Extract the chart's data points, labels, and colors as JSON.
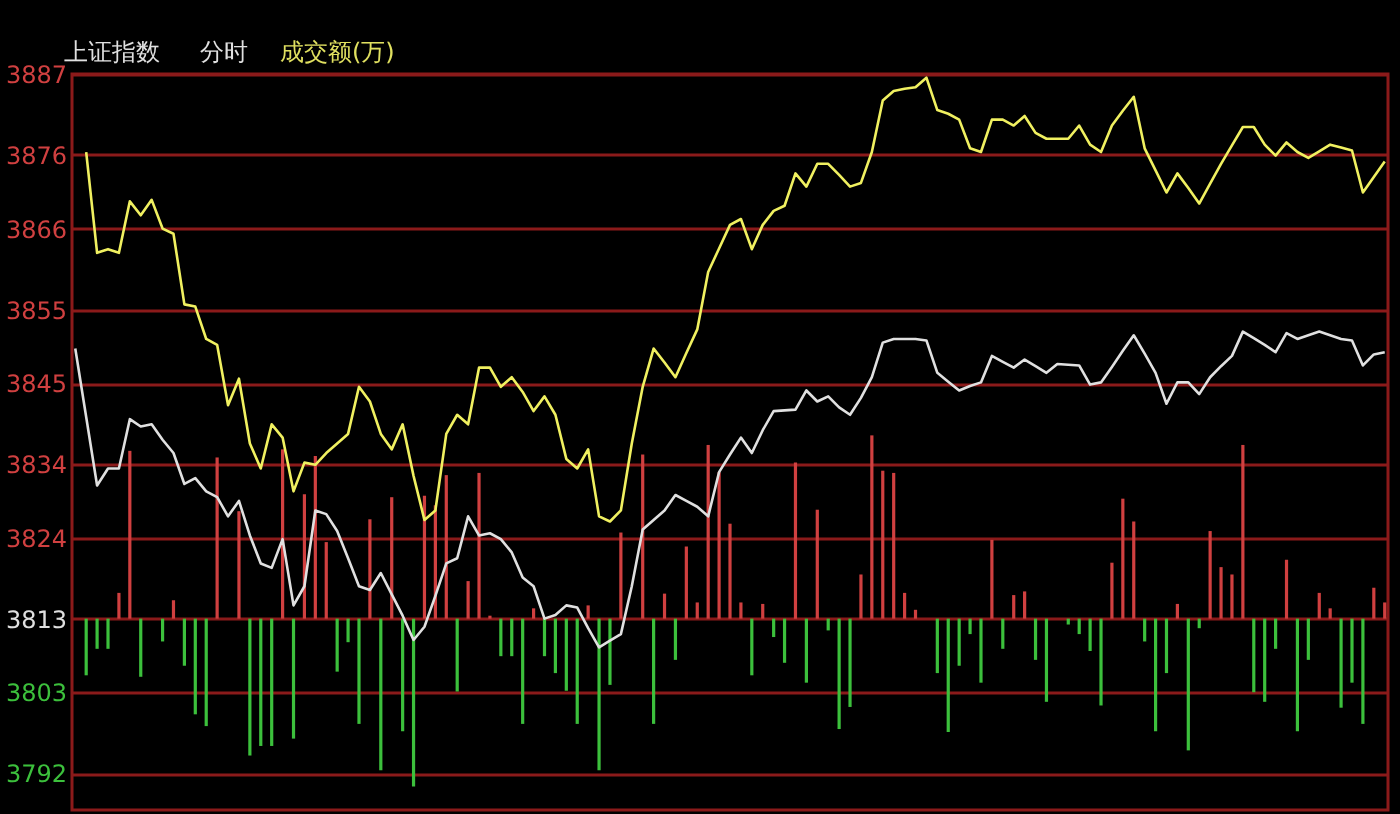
{
  "chart_data": {
    "type": "line",
    "title": "上证指数",
    "annotations": [
      "分时",
      "成交额(万)"
    ],
    "categories": [
      null,
      null,
      null,
      null,
      null,
      null,
      null,
      null,
      null,
      null,
      null,
      null,
      null,
      null,
      null,
      null,
      null,
      null,
      null,
      null,
      null,
      null,
      null,
      null,
      null,
      null,
      null,
      null,
      null,
      null,
      null,
      null,
      null,
      null,
      null,
      null,
      null,
      null,
      null,
      null,
      null,
      null,
      null,
      null,
      null,
      null,
      null,
      null,
      null,
      null,
      null,
      null,
      null,
      null,
      null,
      null,
      null,
      null,
      null,
      null,
      null,
      null,
      null,
      null,
      null,
      null,
      null,
      null,
      null,
      null,
      null,
      null,
      null,
      null,
      null,
      null,
      null,
      null,
      null,
      null,
      null,
      null,
      null,
      null,
      null,
      null,
      null,
      null,
      null,
      null,
      null,
      null,
      null,
      null,
      null,
      null,
      null,
      null,
      null,
      null,
      null,
      null,
      null,
      null,
      null,
      null,
      null,
      null,
      null,
      null,
      null,
      null,
      null,
      null,
      null,
      null,
      null,
      null,
      null,
      null,
      null
    ],
    "ylim": [
      3787,
      3887
    ],
    "yticks": [
      3792,
      3803,
      3813,
      3824,
      3834,
      3845,
      3855,
      3866,
      3876,
      3887
    ],
    "tick_labels": "y",
    "grid": "y",
    "marker": "none",
    "line_style": "solid",
    "series": [
      {
        "type": "bar",
        "base": [
          null,
          3813,
          3813,
          3813,
          3813,
          3813,
          3813,
          null,
          3813,
          3813,
          3813,
          3813,
          3813,
          3813,
          null,
          3813,
          3813,
          3813,
          3813,
          3813,
          3813,
          3813,
          3813,
          3813,
          3813,
          3813,
          3813,
          3813,
          3813,
          3813,
          3813,
          3813,
          3813,
          3813,
          3813,
          3813,
          3813,
          3813,
          3813,
          3813,
          3813,
          3813,
          3813,
          3813,
          3813,
          3813,
          3813,
          3813,
          3813,
          3813,
          3813,
          null,
          3813,
          3813,
          3813,
          3813,
          3813,
          3813,
          3813,
          3813,
          3813,
          3813,
          3813,
          3813,
          3813,
          3813,
          3813,
          3813,
          3813,
          3813,
          3813,
          3813,
          3813,
          3813,
          3813,
          3813,
          3813,
          3813,
          null,
          3813,
          3813,
          3813,
          3813,
          3813,
          3813,
          3813,
          3813,
          3813,
          3813,
          3813,
          null,
          3813,
          3813,
          3813,
          3813,
          3813,
          3813,
          3813,
          3813,
          3813,
          3813,
          3813,
          3813,
          3813,
          3813,
          3813,
          3813,
          3813,
          3813,
          3813,
          3813,
          3813,
          3813,
          3813,
          3813,
          3813,
          3813,
          3813,
          3813,
          3813,
          3813
        ],
        "values": [
          null,
          -7.7,
          -4.1,
          -4.1,
          3.5,
          22.8,
          -7.9,
          null,
          -3.1,
          2.5,
          -6.4,
          -13.0,
          -14.6,
          21.9,
          null,
          14.6,
          -18.6,
          -17.3,
          -17.3,
          23.0,
          -16.3,
          16.9,
          22.1,
          10.4,
          -7.2,
          -3.2,
          -14.3,
          13.5,
          -20.6,
          16.5,
          -15.3,
          -22.8,
          16.7,
          15.4,
          19.5,
          -9.9,
          5.1,
          19.8,
          0.4,
          -5.1,
          -5.1,
          -14.3,
          1.4,
          -5.1,
          -7.4,
          -9.8,
          -14.3,
          1.8,
          -20.6,
          -9.0,
          11.7,
          null,
          22.3,
          -14.3,
          3.4,
          -5.6,
          9.8,
          2.2,
          23.6,
          19.9,
          12.9,
          2.2,
          -7.7,
          2.0,
          -2.5,
          -6.0,
          21.2,
          -8.7,
          14.8,
          -1.6,
          -15.0,
          -12.0,
          6.0,
          24.9,
          20.1,
          19.8,
          3.5,
          1.2,
          null,
          -7.4,
          -15.4,
          -6.4,
          -2.1,
          -8.7,
          10.7,
          -4.1,
          3.2,
          3.7,
          -5.6,
          -11.3,
          null,
          -0.8,
          -2.1,
          -4.4,
          -11.8,
          7.6,
          16.3,
          13.2,
          -3.1,
          -15.3,
          -7.4,
          2.0,
          -17.9,
          -1.3,
          11.9,
          7.0,
          6.0,
          23.6,
          -10.0,
          -11.3,
          -4.1,
          8.0,
          -15.3,
          -5.6,
          3.5,
          1.4,
          -12.1,
          -8.7,
          -14.3,
          4.2,
          2.2
        ],
        "colors": [
          "#d04040",
          "#3cc03c",
          "#3cc03c",
          "#3cc03c",
          "#d04040",
          "#d04040",
          "#3cc03c",
          "#d04040",
          "#3cc03c",
          "#d04040",
          "#3cc03c",
          "#3cc03c",
          "#3cc03c",
          "#d04040",
          "#d04040",
          "#d04040",
          "#3cc03c",
          "#3cc03c",
          "#3cc03c",
          "#d04040",
          "#3cc03c",
          "#d04040",
          "#d04040",
          "#d04040",
          "#3cc03c",
          "#3cc03c",
          "#3cc03c",
          "#d04040",
          "#3cc03c",
          "#d04040",
          "#3cc03c",
          "#3cc03c",
          "#d04040",
          "#d04040",
          "#d04040",
          "#3cc03c",
          "#d04040",
          "#d04040",
          "#d04040",
          "#3cc03c",
          "#3cc03c",
          "#3cc03c",
          "#d04040",
          "#3cc03c",
          "#3cc03c",
          "#3cc03c",
          "#3cc03c",
          "#d04040",
          "#3cc03c",
          "#3cc03c",
          "#d04040",
          "#d04040",
          "#d04040",
          "#3cc03c",
          "#d04040",
          "#3cc03c",
          "#d04040",
          "#d04040",
          "#d04040",
          "#d04040",
          "#d04040",
          "#d04040",
          "#3cc03c",
          "#d04040",
          "#3cc03c",
          "#3cc03c",
          "#d04040",
          "#3cc03c",
          "#d04040",
          "#3cc03c",
          "#3cc03c",
          "#3cc03c",
          "#d04040",
          "#d04040",
          "#d04040",
          "#d04040",
          "#d04040",
          "#d04040",
          "#d04040",
          "#3cc03c",
          "#3cc03c",
          "#3cc03c",
          "#3cc03c",
          "#3cc03c",
          "#d04040",
          "#3cc03c",
          "#d04040",
          "#d04040",
          "#3cc03c",
          "#3cc03c",
          "#d04040",
          "#3cc03c",
          "#3cc03c",
          "#3cc03c",
          "#3cc03c",
          "#d04040",
          "#d04040",
          "#d04040",
          "#3cc03c",
          "#3cc03c",
          "#3cc03c",
          "#d04040",
          "#3cc03c",
          "#3cc03c",
          "#d04040",
          "#d04040",
          "#d04040",
          "#d04040",
          "#3cc03c",
          "#3cc03c",
          "#3cc03c",
          "#d04040",
          "#3cc03c",
          "#3cc03c",
          "#d04040",
          "#d04040",
          "#3cc03c",
          "#3cc03c",
          "#3cc03c",
          "#d04040",
          "#d04040"
        ]
      },
      {
        "color": "#e0e0e0",
        "values": [
          3849.7,
          3840.4,
          3831.1,
          3833.4,
          3833.4,
          3840.1,
          3839.1,
          3839.4,
          3837.3,
          3835.5,
          3831.3,
          3832.1,
          3830.3,
          3829.5,
          3826.9,
          3829.0,
          3824.3,
          3820.5,
          3819.9,
          3823.8,
          3814.8,
          3817.4,
          3827.7,
          3827.2,
          3824.9,
          3821.2,
          3817.4,
          3816.9,
          3819.2,
          3816.3,
          3813.4,
          3810.1,
          3811.9,
          3816.1,
          3820.5,
          3821.2,
          3826.9,
          3824.3,
          3824.6,
          3823.8,
          3822.0,
          3818.6,
          3817.4,
          3813.0,
          3813.5,
          3814.8,
          3814.5,
          3811.7,
          3809.1,
          3810.0,
          3810.9,
          3817.4,
          3825.1,
          3826.4,
          3827.7,
          3829.8,
          3829.0,
          3828.2,
          3826.9,
          3832.9,
          3835.3,
          3837.6,
          3835.5,
          3838.6,
          3841.2,
          3841.3,
          3841.4,
          3844.0,
          3842.5,
          3843.2,
          3841.7,
          3840.7,
          3843.0,
          3845.8,
          3850.5,
          3851.0,
          3851.0,
          3851.0,
          3850.8,
          3846.4,
          3845.2,
          3844.0,
          3844.6,
          3845.1,
          3848.7,
          3847.9,
          3847.1,
          3848.2,
          3847.3,
          3846.4,
          3847.6,
          3847.5,
          3847.4,
          3844.8,
          3845.1,
          3847.2,
          3849.4,
          3851.5,
          3849.0,
          3846.4,
          3842.2,
          3845.1,
          3845.1,
          3843.5,
          3845.8,
          3847.3,
          3848.7,
          3852.0,
          3851.1,
          3850.2,
          3849.2,
          3851.8,
          3851.0,
          3851.5,
          3852.0,
          3851.5,
          3851.0,
          3850.8,
          3847.4,
          3848.9,
          3849.2
        ]
      },
      {
        "color": "#f0f060",
        "values": [
          null,
          3876.4,
          3862.7,
          3863.2,
          3862.7,
          3869.7,
          3867.8,
          3869.9,
          3866.0,
          3865.3,
          3855.7,
          3855.4,
          3851.0,
          3850.2,
          3842.0,
          3845.6,
          3836.8,
          3833.4,
          3839.4,
          3837.6,
          3830.3,
          3834.2,
          3833.9,
          3835.5,
          3836.8,
          3838.1,
          3844.5,
          3842.5,
          3838.1,
          3836.0,
          3839.4,
          3832.4,
          3826.4,
          3827.7,
          3838.1,
          3840.7,
          3839.4,
          3847.1,
          3847.1,
          3844.5,
          3845.8,
          3843.8,
          3841.2,
          3843.2,
          3840.7,
          3834.7,
          3833.4,
          3836.0,
          3826.9,
          3826.2,
          3827.7,
          3836.8,
          3844.5,
          3849.7,
          3847.8,
          3845.8,
          3849.1,
          3852.3,
          3860.1,
          3863.3,
          3866.5,
          3867.3,
          3863.2,
          3866.5,
          3868.4,
          3869.1,
          3873.5,
          3871.7,
          3874.8,
          3874.8,
          3873.3,
          3871.7,
          3872.2,
          3876.4,
          3883.4,
          3884.7,
          3885.0,
          3885.2,
          3886.5,
          3882.1,
          3881.6,
          3880.8,
          3876.9,
          3876.4,
          3880.8,
          3880.8,
          3880.0,
          3881.3,
          3879.0,
          3878.2,
          3878.2,
          3878.2,
          3880.0,
          3877.4,
          3876.4,
          3880.0,
          3882.0,
          3883.9,
          3876.9,
          3873.9,
          3870.9,
          3873.5,
          3871.5,
          3869.4,
          3872.1,
          3874.8,
          3877.3,
          3879.8,
          3879.8,
          3877.4,
          3875.9,
          3877.7,
          3876.4,
          3875.6,
          3876.5,
          3877.4,
          3877.0,
          3876.6,
          3870.9,
          3873.0,
          3875.1
        ]
      }
    ]
  }
}
